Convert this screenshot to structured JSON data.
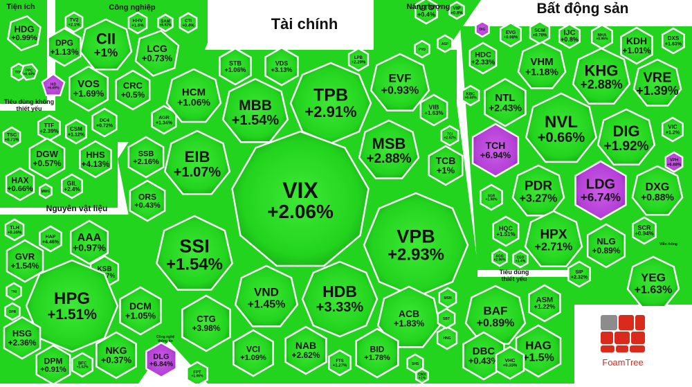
{
  "colors": {
    "up": "#22d41e",
    "up_dark": "#14a012",
    "ceiling": "#b43fd6",
    "ceiling_dark": "#8a25ad",
    "gap": "#ffffff",
    "logo_red": "#d92a1c",
    "logo_gray": "#8c8c8c"
  },
  "logo": {
    "text": "FoamTree"
  },
  "chart_data": {
    "type": "treemap",
    "groups": [
      {
        "id": "tien_ich",
        "label": "Tiện ích"
      },
      {
        "id": "cong_nghiep",
        "label": "Công nghiệp"
      },
      {
        "id": "nang_luong",
        "label": "Năng lượng"
      },
      {
        "id": "tai_chinh",
        "label": "Tài chính"
      },
      {
        "id": "bat_dong_san",
        "label": "Bất động sản"
      },
      {
        "id": "tieu_dung_ktyeu",
        "label": "Tiêu dùng không thiết yếu"
      },
      {
        "id": "nguyen_vat_lieu",
        "label": "Nguyên vật liệu"
      },
      {
        "id": "tieu_dung_tyeu",
        "label": "Tiêu dùng thiết yếu"
      },
      {
        "id": "cong_nghe",
        "label": "Công nghệ thông tin"
      },
      {
        "id": "van_thong",
        "label": "Viễn thông"
      }
    ],
    "cells": [
      {
        "t": "HDG",
        "c": "+0.99%",
        "g": "tien_ich",
        "s": "up"
      },
      {
        "t": "TDM",
        "c": "",
        "g": "tien_ich",
        "s": "up"
      },
      {
        "t": "PPC",
        "c": "+0.44%",
        "g": "tien_ich",
        "s": "up"
      },
      {
        "t": "HID",
        "c": "+6.69%",
        "g": "tien_ich",
        "s": "ceiling"
      },
      {
        "t": "TV2",
        "c": "+2.1%",
        "g": "cong_nghiep",
        "s": "up"
      },
      {
        "t": "HHV",
        "c": "+1.6%",
        "g": "cong_nghiep",
        "s": "up"
      },
      {
        "t": "SAM",
        "c": "+6.92%",
        "g": "cong_nghiep",
        "s": "up"
      },
      {
        "t": "CTI",
        "c": "+0.4%",
        "g": "cong_nghiep",
        "s": "up"
      },
      {
        "t": "CII",
        "c": "+1%",
        "g": "cong_nghiep",
        "s": "up"
      },
      {
        "t": "DPG",
        "c": "+1.13%",
        "g": "cong_nghiep",
        "s": "up"
      },
      {
        "t": "LCG",
        "c": "+0.73%",
        "g": "cong_nghiep",
        "s": "up"
      },
      {
        "t": "VOS",
        "c": "+1.69%",
        "g": "cong_nghiep",
        "s": "up"
      },
      {
        "t": "CRC",
        "c": "+0.5%",
        "g": "cong_nghiep",
        "s": "up"
      },
      {
        "t": "DC4",
        "c": "+0.72%",
        "g": "cong_nghiep",
        "s": "up"
      },
      {
        "t": "AGR",
        "c": "+1.34%",
        "g": "tai_chinh",
        "s": "up"
      },
      {
        "t": "VTO",
        "c": "+0.4%",
        "g": "nang_luong",
        "s": "up"
      },
      {
        "t": "VIP",
        "c": "+0.8%",
        "g": "nang_luong",
        "s": "up"
      },
      {
        "t": "ASP",
        "c": "",
        "g": "nang_luong",
        "s": "up"
      },
      {
        "t": "PVD",
        "c": "",
        "g": "nang_luong",
        "s": "up"
      },
      {
        "t": "STB",
        "c": "+1.06%",
        "g": "tai_chinh",
        "s": "up"
      },
      {
        "t": "VDS",
        "c": "+3.13%",
        "g": "tai_chinh",
        "s": "up"
      },
      {
        "t": "LPB",
        "c": "+2.29%",
        "g": "tai_chinh",
        "s": "up"
      },
      {
        "t": "HCM",
        "c": "+1.06%",
        "g": "tai_chinh",
        "s": "up"
      },
      {
        "t": "MBB",
        "c": "+1.54%",
        "g": "tai_chinh",
        "s": "up"
      },
      {
        "t": "TPB",
        "c": "+2.91%",
        "g": "tai_chinh",
        "s": "up"
      },
      {
        "t": "EVF",
        "c": "+0.93%",
        "g": "tai_chinh",
        "s": "up"
      },
      {
        "t": "VIB",
        "c": "+1.63%",
        "g": "tai_chinh",
        "s": "up"
      },
      {
        "t": "TCI",
        "c": "+2.92%",
        "g": "tai_chinh",
        "s": "up"
      },
      {
        "t": "EIB",
        "c": "+1.07%",
        "g": "tai_chinh",
        "s": "up"
      },
      {
        "t": "MSB",
        "c": "+2.88%",
        "g": "tai_chinh",
        "s": "up"
      },
      {
        "t": "TCB",
        "c": "+1%",
        "g": "tai_chinh",
        "s": "up"
      },
      {
        "t": "SSB",
        "c": "+2.16%",
        "g": "tai_chinh",
        "s": "up"
      },
      {
        "t": "VIX",
        "c": "+2.06%",
        "g": "tai_chinh",
        "s": "up"
      },
      {
        "t": "ORS",
        "c": "+0.43%",
        "g": "tai_chinh",
        "s": "up"
      },
      {
        "t": "SSI",
        "c": "+1.54%",
        "g": "tai_chinh",
        "s": "up"
      },
      {
        "t": "VPB",
        "c": "+2.93%",
        "g": "tai_chinh",
        "s": "up"
      },
      {
        "t": "VND",
        "c": "+1.45%",
        "g": "tai_chinh",
        "s": "up"
      },
      {
        "t": "HDB",
        "c": "+3.33%",
        "g": "tai_chinh",
        "s": "up"
      },
      {
        "t": "CTG",
        "c": "+3.98%",
        "g": "tai_chinh",
        "s": "up"
      },
      {
        "t": "ACB",
        "c": "+1.83%",
        "g": "tai_chinh",
        "s": "up"
      },
      {
        "t": "VCI",
        "c": "+1.09%",
        "g": "tai_chinh",
        "s": "up"
      },
      {
        "t": "NAB",
        "c": "+2.62%",
        "g": "tai_chinh",
        "s": "up"
      },
      {
        "t": "FTS",
        "c": "+1.27%",
        "g": "tai_chinh",
        "s": "up"
      },
      {
        "t": "BID",
        "c": "+1.78%",
        "g": "tai_chinh",
        "s": "up"
      },
      {
        "t": "SHS",
        "c": "",
        "g": "tai_chinh",
        "s": "up"
      },
      {
        "t": "CMX",
        "c": "+1%",
        "g": "tai_chinh",
        "s": "up"
      },
      {
        "t": "DIG",
        "c": "",
        "g": "bat_dong_san",
        "s": "ceiling"
      },
      {
        "t": "EVG",
        "c": "+0.98%",
        "g": "bat_dong_san",
        "s": "up"
      },
      {
        "t": "SCM",
        "c": "+0.78%",
        "g": "bat_dong_san",
        "s": "up"
      },
      {
        "t": "IJC",
        "c": "+0.8%",
        "g": "bat_dong_san",
        "s": "up"
      },
      {
        "t": "NHA",
        "c": "+0.96%",
        "g": "bat_dong_san",
        "s": "up"
      },
      {
        "t": "KDH",
        "c": "+1.01%",
        "g": "bat_dong_san",
        "s": "up"
      },
      {
        "t": "DXS",
        "c": "+1.63%",
        "g": "bat_dong_san",
        "s": "up"
      },
      {
        "t": "HDC",
        "c": "+2.33%",
        "g": "bat_dong_san",
        "s": "up"
      },
      {
        "t": "VHM",
        "c": "+1.18%",
        "g": "bat_dong_san",
        "s": "up"
      },
      {
        "t": "KHG",
        "c": "+2.88%",
        "g": "bat_dong_san",
        "s": "up"
      },
      {
        "t": "VRE",
        "c": "+1.39%",
        "g": "bat_dong_san",
        "s": "up"
      },
      {
        "t": "KBC",
        "c": "+0.68%",
        "g": "bat_dong_san",
        "s": "up"
      },
      {
        "t": "NTL",
        "c": "+2.43%",
        "g": "bat_dong_san",
        "s": "up"
      },
      {
        "t": "NVL",
        "c": "+0.66%",
        "g": "bat_dong_san",
        "s": "up"
      },
      {
        "t": "DIG",
        "c": "+1.92%",
        "g": "bat_dong_san",
        "s": "up"
      },
      {
        "t": "VIC",
        "c": "+1.2%",
        "g": "bat_dong_san",
        "s": "up"
      },
      {
        "t": "TCH",
        "c": "+6.94%",
        "g": "bat_dong_san",
        "s": "ceiling"
      },
      {
        "t": "VPH",
        "c": "+6.88%",
        "g": "bat_dong_san",
        "s": "ceiling"
      },
      {
        "t": "LDG",
        "c": "+6.74%",
        "g": "bat_dong_san",
        "s": "ceiling"
      },
      {
        "t": "PDR",
        "c": "+3.27%",
        "g": "bat_dong_san",
        "s": "up"
      },
      {
        "t": "DXG",
        "c": "+0.88%",
        "g": "bat_dong_san",
        "s": "up"
      },
      {
        "t": "SGR",
        "c": "+1.98%",
        "g": "bat_dong_san",
        "s": "up"
      },
      {
        "t": "HQC",
        "c": "+1.51%",
        "g": "bat_dong_san",
        "s": "up"
      },
      {
        "t": "HPX",
        "c": "+2.71%",
        "g": "bat_dong_san",
        "s": "up"
      },
      {
        "t": "NLG",
        "c": "+0.89%",
        "g": "bat_dong_san",
        "s": "up"
      },
      {
        "t": "SCR",
        "c": "+0.94%",
        "g": "bat_dong_san",
        "s": "up"
      },
      {
        "t": "AGG",
        "c": "+2.06%",
        "g": "bat_dong_san",
        "s": "up"
      },
      {
        "t": "CEO",
        "c": "+1.4%",
        "g": "bat_dong_san",
        "s": "up"
      },
      {
        "t": "SIP",
        "c": "+2.32%",
        "g": "bat_dong_san",
        "s": "up"
      },
      {
        "t": "TTF",
        "c": "+2.39%",
        "g": "tieu_dung_ktyeu",
        "s": "up"
      },
      {
        "t": "TSC",
        "c": "+0.71%",
        "g": "tieu_dung_ktyeu",
        "s": "up"
      },
      {
        "t": "CSM",
        "c": "+1.12%",
        "g": "tieu_dung_ktyeu",
        "s": "up"
      },
      {
        "t": "DGW",
        "c": "+0.57%",
        "g": "tieu_dung_ktyeu",
        "s": "up"
      },
      {
        "t": "HHS",
        "c": "+4.13%",
        "g": "tieu_dung_ktyeu",
        "s": "up"
      },
      {
        "t": "HAX",
        "c": "+0.66%",
        "g": "tieu_dung_ktyeu",
        "s": "up"
      },
      {
        "t": "GIL",
        "c": "+2.4%",
        "g": "tieu_dung_ktyeu",
        "s": "up"
      },
      {
        "t": "MWG",
        "c": "",
        "g": "tieu_dung_ktyeu",
        "s": "up"
      },
      {
        "t": "TLH",
        "c": "+0.36%",
        "g": "nguyen_vat_lieu",
        "s": "up"
      },
      {
        "t": "HAP",
        "c": "+4.46%",
        "g": "nguyen_vat_lieu",
        "s": "up"
      },
      {
        "t": "AAA",
        "c": "+0.97%",
        "g": "nguyen_vat_lieu",
        "s": "up"
      },
      {
        "t": "GVR",
        "c": "+1.54%",
        "g": "nguyen_vat_lieu",
        "s": "up"
      },
      {
        "t": "KSB",
        "c": "+1.47%",
        "g": "nguyen_vat_lieu",
        "s": "up"
      },
      {
        "t": "TNI",
        "c": "",
        "g": "nguyen_vat_lieu",
        "s": "up"
      },
      {
        "t": "HPG",
        "c": "+1.51%",
        "g": "nguyen_vat_lieu",
        "s": "up"
      },
      {
        "t": "DPR",
        "c": "",
        "g": "nguyen_vat_lieu",
        "s": "up"
      },
      {
        "t": "DCM",
        "c": "+1.05%",
        "g": "nguyen_vat_lieu",
        "s": "up"
      },
      {
        "t": "HSG",
        "c": "+2.36%",
        "g": "nguyen_vat_lieu",
        "s": "up"
      },
      {
        "t": "DPM",
        "c": "+0.91%",
        "g": "nguyen_vat_lieu",
        "s": "up"
      },
      {
        "t": "BFC",
        "c": "+1.52%",
        "g": "nguyen_vat_lieu",
        "s": "up"
      },
      {
        "t": "NKG",
        "c": "+0.37%",
        "g": "nguyen_vat_lieu",
        "s": "up"
      },
      {
        "t": "DLG",
        "c": "+6.84%",
        "g": "cong_nghe",
        "s": "ceiling"
      },
      {
        "t": "FPT",
        "c": "+1.06%",
        "g": "cong_nghe",
        "s": "up"
      },
      {
        "t": "BAF",
        "c": "+0.89%",
        "g": "tieu_dung_tyeu",
        "s": "up"
      },
      {
        "t": "ASM",
        "c": "+1.22%",
        "g": "tieu_dung_tyeu",
        "s": "up"
      },
      {
        "t": "DBC",
        "c": "+0.43%",
        "g": "tieu_dung_tyeu",
        "s": "up"
      },
      {
        "t": "HAG",
        "c": "+1.5%",
        "g": "tieu_dung_tyeu",
        "s": "up"
      },
      {
        "t": "VHC",
        "c": "+0.35%",
        "g": "tieu_dung_tyeu",
        "s": "up"
      },
      {
        "t": "HNG",
        "c": "",
        "g": "tieu_dung_tyeu",
        "s": "up"
      },
      {
        "t": "MSN",
        "c": "",
        "g": "tieu_dung_tyeu",
        "s": "up"
      },
      {
        "t": "SBT",
        "c": "",
        "g": "tieu_dung_tyeu",
        "s": "up"
      },
      {
        "t": "YEG",
        "c": "+1.63%",
        "g": "van_thong",
        "s": "up"
      }
    ]
  }
}
